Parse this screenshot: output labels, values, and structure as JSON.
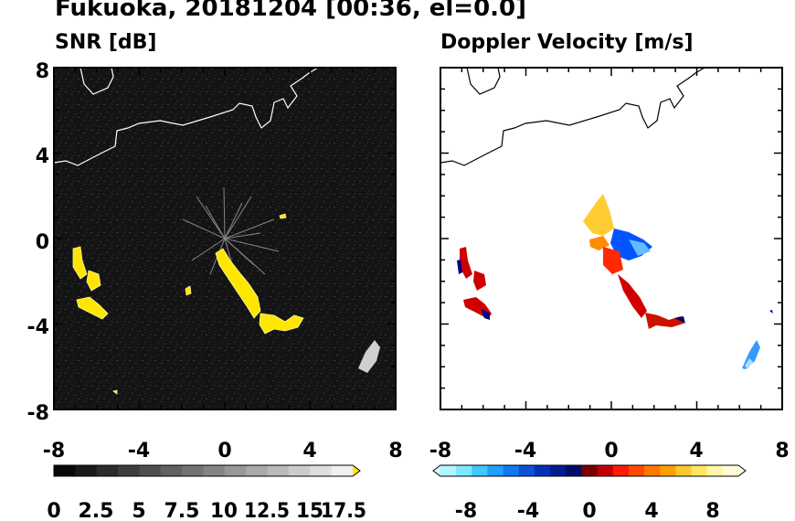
{
  "title": "Fukuoka, 20181204 [00:36, el=0.0]",
  "chart_data": [
    {
      "type": "heatmap",
      "title": "SNR [dB]",
      "xlim": [
        -8,
        8
      ],
      "ylim": [
        -8,
        8
      ],
      "xticks": [
        "-8",
        "-4",
        "0",
        "4",
        "8"
      ],
      "yticks": [
        "8",
        "4",
        "0",
        "-4",
        "-8"
      ],
      "colorbar": {
        "ticks": [
          "0",
          "2.5",
          "5",
          "7.5",
          "10",
          "12.5",
          "15",
          "17.5"
        ],
        "range": [
          0,
          17.5
        ],
        "colormap": "grayscale-to-yellow",
        "extend": "max"
      },
      "echo_color": "#ffe600",
      "background_color": "#111111"
    },
    {
      "type": "heatmap",
      "title": "Doppler Velocity [m/s]",
      "xlim": [
        -8,
        8
      ],
      "ylim": [
        -8,
        8
      ],
      "xticks": [
        "-8",
        "-4",
        "0",
        "4",
        "8"
      ],
      "yticks": [
        "8",
        "4",
        "0",
        "-4",
        "-8"
      ],
      "colorbar": {
        "ticks": [
          "-8",
          "-4",
          "0",
          "4",
          "8"
        ],
        "range": [
          -10,
          10
        ],
        "colormap": "cyan-blue-red-yellow",
        "extend": "both"
      },
      "background_color": "#ffffff"
    }
  ]
}
